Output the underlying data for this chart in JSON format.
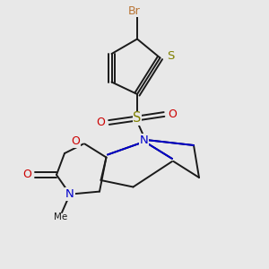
{
  "background_color": "#e8e8e8",
  "figsize": [
    3.0,
    3.0
  ],
  "dpi": 100,
  "bond_color": "#1a1a1a",
  "bond_lw": 1.4,
  "colors": {
    "Br": "#b87333",
    "S": "#808000",
    "O": "#cc0000",
    "N": "#0000cc",
    "C": "#1a1a1a"
  }
}
